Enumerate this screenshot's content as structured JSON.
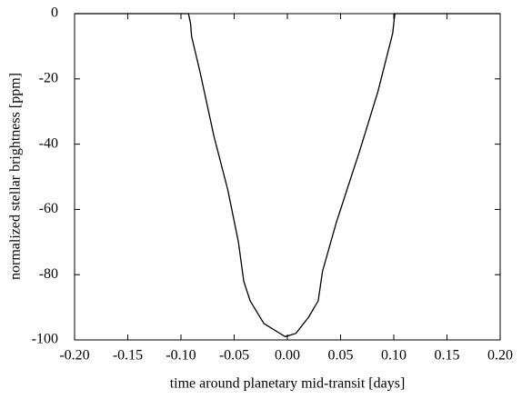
{
  "chart_data": {
    "type": "line",
    "xlabel": "time around planetary mid-transit [days]",
    "ylabel": "normalized stellar brightness [ppm]",
    "x": [
      -0.2,
      -0.093,
      -0.091,
      -0.09,
      -0.082,
      -0.069,
      -0.056,
      -0.046,
      -0.041,
      -0.035,
      -0.022,
      -0.002,
      0.008,
      0.02,
      0.029,
      0.033,
      0.046,
      0.068,
      0.085,
      0.099,
      0.101,
      0.2
    ],
    "values": [
      0,
      0,
      -3,
      -7,
      -18,
      -37.6,
      -54,
      -70,
      -82,
      -88,
      -95,
      -99,
      -98,
      -93,
      -88,
      -79,
      -64,
      -42,
      -24,
      -6,
      0,
      0
    ],
    "color": "#000000",
    "xlim": [
      -0.2,
      0.2
    ],
    "xticks": [
      {
        "value": -0.2,
        "label": "-0.20"
      },
      {
        "value": -0.15,
        "label": "-0.15"
      },
      {
        "value": -0.1,
        "label": "-0.10"
      },
      {
        "value": -0.05,
        "label": "-0.05"
      },
      {
        "value": 0,
        "label": "0.00"
      },
      {
        "value": 0.05,
        "label": "0.05"
      },
      {
        "value": 0.1,
        "label": "0.10"
      },
      {
        "value": 0.15,
        "label": "0.15"
      },
      {
        "value": 0.2,
        "label": "0.20"
      }
    ],
    "ylim": [
      -100,
      0
    ],
    "yticks": [
      0,
      -20,
      -40,
      -60,
      -80,
      -100
    ],
    "grid": false
  }
}
